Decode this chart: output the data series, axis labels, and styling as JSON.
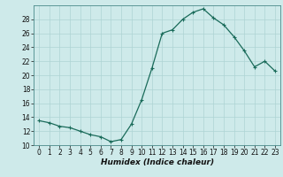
{
  "x": [
    0,
    1,
    2,
    3,
    4,
    5,
    6,
    7,
    8,
    9,
    10,
    11,
    12,
    13,
    14,
    15,
    16,
    17,
    18,
    19,
    20,
    21,
    22,
    23
  ],
  "y": [
    13.5,
    13.2,
    12.7,
    12.5,
    12.0,
    11.5,
    11.2,
    10.5,
    10.8,
    13.0,
    16.5,
    21.0,
    26.0,
    26.5,
    28.0,
    29.0,
    29.5,
    28.2,
    27.2,
    25.5,
    23.5,
    21.2,
    22.0,
    20.6
  ],
  "line_color": "#1a6b5a",
  "marker": "+",
  "marker_size": 3,
  "marker_linewidth": 0.8,
  "bg_color": "#ceeaea",
  "grid_color": "#aed4d4",
  "xlabel": "Humidex (Indice chaleur)",
  "xlim": [
    -0.5,
    23.5
  ],
  "ylim": [
    10,
    30
  ],
  "yticks": [
    10,
    12,
    14,
    16,
    18,
    20,
    22,
    24,
    26,
    28
  ],
  "xticks": [
    0,
    1,
    2,
    3,
    4,
    5,
    6,
    7,
    8,
    9,
    10,
    11,
    12,
    13,
    14,
    15,
    16,
    17,
    18,
    19,
    20,
    21,
    22,
    23
  ],
  "tick_labelsize": 5.5,
  "xlabel_fontsize": 6.5,
  "linewidth": 0.9
}
